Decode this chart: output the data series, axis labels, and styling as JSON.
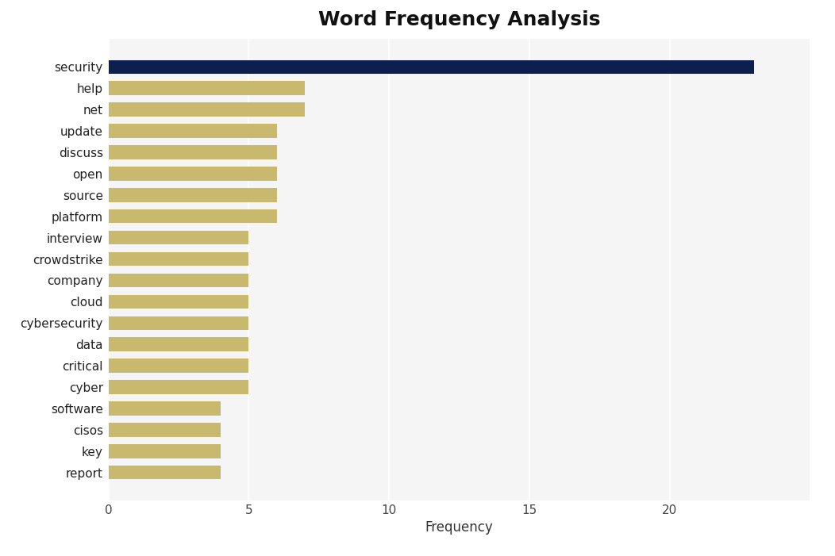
{
  "categories": [
    "security",
    "help",
    "net",
    "update",
    "discuss",
    "open",
    "source",
    "platform",
    "interview",
    "crowdstrike",
    "company",
    "cloud",
    "cybersecurity",
    "data",
    "critical",
    "cyber",
    "software",
    "cisos",
    "key",
    "report"
  ],
  "values": [
    23,
    7,
    7,
    6,
    6,
    6,
    6,
    6,
    5,
    5,
    5,
    5,
    5,
    5,
    5,
    5,
    4,
    4,
    4,
    4
  ],
  "bar_colors": [
    "#0d1f4e",
    "#c8b96e",
    "#c8b96e",
    "#c8b96e",
    "#c8b96e",
    "#c8b96e",
    "#c8b96e",
    "#c8b96e",
    "#c8b96e",
    "#c8b96e",
    "#c8b96e",
    "#c8b96e",
    "#c8b96e",
    "#c8b96e",
    "#c8b96e",
    "#c8b96e",
    "#c8b96e",
    "#c8b96e",
    "#c8b96e",
    "#c8b96e"
  ],
  "title": "Word Frequency Analysis",
  "xlabel": "Frequency",
  "ylabel": "",
  "xlim": [
    0,
    25
  ],
  "title_fontsize": 18,
  "label_fontsize": 12,
  "tick_fontsize": 11,
  "fig_bg_color": "#ffffff",
  "plot_bg_color": "#f5f5f5",
  "grid_color": "#ffffff",
  "bar_height": 0.65
}
